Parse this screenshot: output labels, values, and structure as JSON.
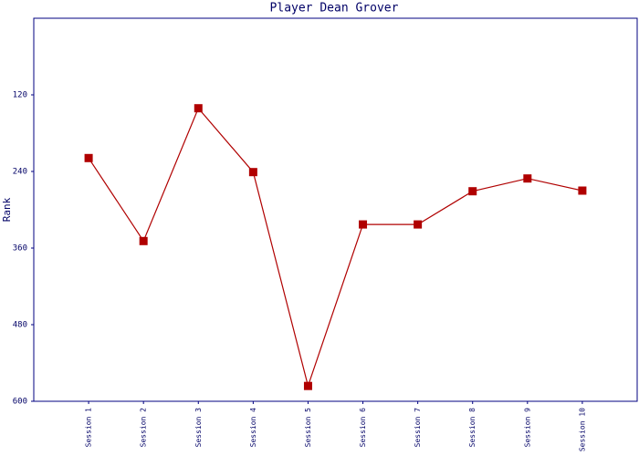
{
  "chart_data": {
    "type": "line",
    "title": "Player Dean Grover",
    "y_label": "Rank",
    "categories": [
      "Session 1",
      "Session 2",
      "Session 3",
      "Session 4",
      "Session 5",
      "Session 6",
      "Session 7",
      "Session 8",
      "Session 9",
      "Session 10"
    ],
    "series": [
      {
        "name": "Rank",
        "color": "#b00000",
        "values": [
          219,
          349,
          141,
          241,
          576,
          323,
          323,
          271,
          251,
          270
        ]
      }
    ],
    "ylim": [
      600,
      0
    ],
    "yticks": [
      120,
      240,
      360,
      480,
      600
    ],
    "grid": false
  }
}
